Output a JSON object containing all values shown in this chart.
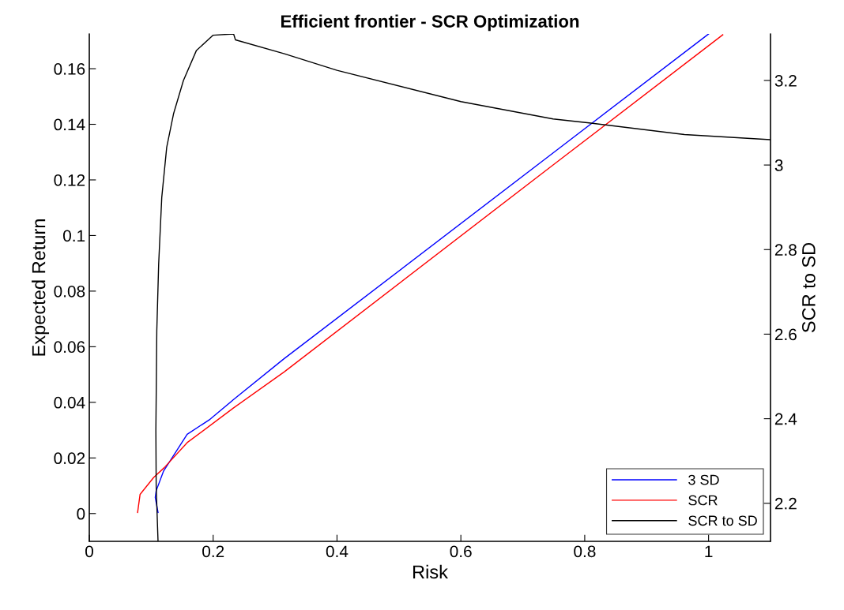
{
  "chart_data": {
    "type": "line",
    "title": "Efficient frontier - SCR Optimization",
    "xlabel": "Risk",
    "ylabel": "Expected Return",
    "y2label": "SCR to SD",
    "xlim": [
      0,
      1.1
    ],
    "xticks": [
      0,
      0.2,
      0.4,
      0.6,
      0.8,
      1
    ],
    "ylim": [
      -0.01,
      0.1725
    ],
    "yticks": [
      0,
      0.02,
      0.04,
      0.06,
      0.08,
      0.1,
      0.12,
      0.14,
      0.16
    ],
    "y2lim": [
      2.11,
      3.31
    ],
    "y2ticks": [
      2.2,
      2.4,
      2.6,
      2.8,
      3,
      3.2
    ],
    "grid": false,
    "legend": "bottom right",
    "marker": "none",
    "line_style": "solid",
    "series": [
      {
        "name": "3 SD",
        "color": "#0000ff",
        "x": [
          0.111,
          0.1065,
          0.108,
          0.12,
          0.158,
          0.195,
          0.233,
          0.314,
          0.749,
          1.0
        ],
        "values": [
          0.0004,
          0.0058,
          0.0082,
          0.0153,
          0.0285,
          0.0339,
          0.041,
          0.0556,
          0.1297,
          0.1725
        ]
      },
      {
        "name": "SCR",
        "color": "#ff0000",
        "x": [
          0.078,
          0.082,
          0.104,
          0.121,
          0.158,
          0.233,
          0.315,
          0.749,
          1.023
        ],
        "values": [
          0.0004,
          0.0069,
          0.013,
          0.0165,
          0.0255,
          0.038,
          0.051,
          0.1254,
          0.1722
        ]
      },
      {
        "name": "SCR to SD",
        "color": "#000000",
        "axis": "y2",
        "x": [
          0.111,
          0.108,
          0.1075,
          0.109,
          0.112,
          0.117,
          0.125,
          0.136,
          0.152,
          0.173,
          0.2,
          0.233,
          0.236,
          0.315,
          0.4,
          0.6,
          0.749,
          0.81,
          0.961,
          1.1
        ],
        "values": [
          2.11,
          2.24,
          2.372,
          2.608,
          2.766,
          2.923,
          3.042,
          3.121,
          3.2,
          3.271,
          3.307,
          3.31,
          3.296,
          3.263,
          3.224,
          3.15,
          3.109,
          3.099,
          3.072,
          3.06
        ]
      }
    ]
  }
}
